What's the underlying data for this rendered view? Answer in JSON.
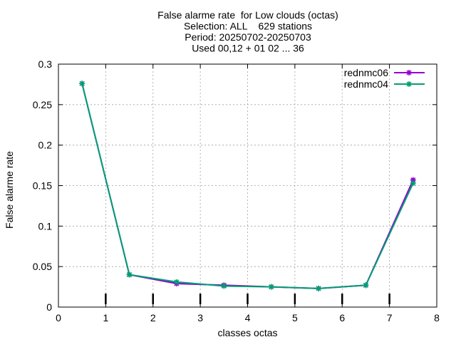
{
  "chart_data": {
    "type": "line",
    "title_lines": [
      "False alarme rate  for Low clouds (octas)",
      "Selection: ALL    629 stations",
      "Period: 20250702-20250703",
      "Used 00,12 + 01 02 ... 36"
    ],
    "xlabel": "classes octas",
    "ylabel": "False alarme rate",
    "xlim": [
      0,
      8
    ],
    "ylim": [
      0,
      0.3
    ],
    "xticks": [
      "0",
      "1",
      "2",
      "3",
      "4",
      "5",
      "6",
      "7",
      "8"
    ],
    "yticks": [
      "0",
      "0.05",
      "0.1",
      "0.15",
      "0.2",
      "0.25",
      "0.3"
    ],
    "grid": true,
    "legend_position": "top-right",
    "series": [
      {
        "name": "rednmc06",
        "color": "#9400d3",
        "x": [
          0.5,
          1.5,
          2.5,
          3.5,
          4.5,
          5.5,
          6.5,
          7.5
        ],
        "values": [
          0.276,
          0.04,
          0.029,
          0.027,
          0.025,
          0.023,
          0.027,
          0.157
        ]
      },
      {
        "name": "rednmc04",
        "color": "#009e73",
        "x": [
          0.5,
          1.5,
          2.5,
          3.5,
          4.5,
          5.5,
          6.5,
          7.5
        ],
        "values": [
          0.276,
          0.04,
          0.031,
          0.026,
          0.025,
          0.023,
          0.027,
          0.153
        ]
      }
    ],
    "errorbar_x": [
      1,
      2,
      3,
      4,
      5,
      6,
      7
    ]
  }
}
